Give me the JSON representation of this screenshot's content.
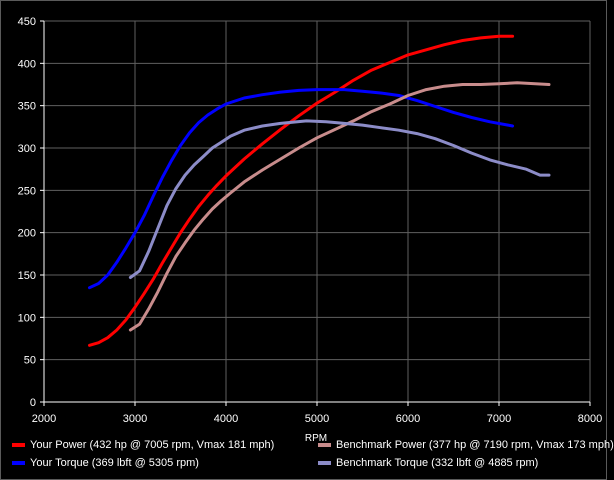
{
  "chart_data": {
    "type": "line",
    "title": "",
    "xlabel": "RPM",
    "ylabel": "",
    "xlim": [
      2000,
      8000
    ],
    "ylim": [
      0,
      450
    ],
    "xticks": [
      2000,
      3000,
      4000,
      5000,
      6000,
      7000,
      8000
    ],
    "yticks": [
      0,
      50,
      100,
      150,
      200,
      250,
      300,
      350,
      400,
      450
    ],
    "grid": true,
    "legend_position": "bottom",
    "series": [
      {
        "name": "Your Power (432 hp @ 7005 rpm, Vmax 181 mph)",
        "color": "#ff0000",
        "x": [
          2500,
          2600,
          2700,
          2800,
          2900,
          3000,
          3100,
          3200,
          3300,
          3400,
          3500,
          3600,
          3700,
          3800,
          3900,
          4000,
          4200,
          4400,
          4600,
          4800,
          5000,
          5200,
          5400,
          5600,
          5800,
          6000,
          6200,
          6400,
          6600,
          6800,
          7000,
          7150
        ],
        "y": [
          67,
          70,
          76,
          85,
          97,
          112,
          128,
          145,
          164,
          182,
          200,
          216,
          231,
          244,
          256,
          267,
          287,
          305,
          322,
          338,
          353,
          366,
          380,
          392,
          401,
          410,
          416,
          422,
          427,
          430,
          432,
          432
        ]
      },
      {
        "name": "Your Torque (369 lbft @ 5305 rpm)",
        "color": "#0000ff",
        "x": [
          2500,
          2600,
          2700,
          2800,
          2900,
          3000,
          3100,
          3200,
          3300,
          3400,
          3500,
          3600,
          3700,
          3800,
          3900,
          4000,
          4200,
          4400,
          4600,
          4800,
          5000,
          5300,
          5500,
          5700,
          5900,
          6100,
          6300,
          6500,
          6700,
          6900,
          7100,
          7150
        ],
        "y": [
          135,
          140,
          150,
          165,
          182,
          200,
          220,
          243,
          265,
          285,
          303,
          318,
          330,
          339,
          346,
          352,
          359,
          363,
          366,
          368,
          369,
          369,
          367,
          365,
          362,
          356,
          349,
          342,
          336,
          331,
          327,
          326
        ]
      },
      {
        "name": "Benchmark Power (377 hp @ 7190 rpm, Vmax 173 mph)",
        "color": "#c88c8c",
        "x": [
          2950,
          3050,
          3150,
          3250,
          3350,
          3450,
          3550,
          3650,
          3750,
          3850,
          3950,
          4050,
          4200,
          4400,
          4600,
          4800,
          5000,
          5200,
          5400,
          5600,
          5800,
          6000,
          6200,
          6400,
          6600,
          6800,
          7000,
          7200,
          7400,
          7550
        ],
        "y": [
          85,
          92,
          110,
          130,
          152,
          172,
          188,
          203,
          216,
          228,
          238,
          247,
          260,
          274,
          287,
          300,
          312,
          322,
          332,
          343,
          352,
          362,
          369,
          373,
          375,
          375,
          376,
          377,
          376,
          375
        ]
      },
      {
        "name": "Benchmark Torque (332 lbft @ 4885 rpm)",
        "color": "#8c8cc8",
        "x": [
          2950,
          3050,
          3150,
          3250,
          3350,
          3450,
          3550,
          3650,
          3750,
          3850,
          3950,
          4050,
          4200,
          4400,
          4600,
          4885,
          5100,
          5300,
          5500,
          5700,
          5900,
          6100,
          6300,
          6500,
          6700,
          6900,
          7100,
          7300,
          7450,
          7550
        ],
        "y": [
          147,
          155,
          178,
          205,
          232,
          252,
          268,
          280,
          290,
          300,
          307,
          314,
          321,
          326,
          329,
          332,
          331,
          329,
          327,
          324,
          321,
          317,
          311,
          303,
          294,
          286,
          280,
          275,
          268,
          268
        ]
      }
    ]
  }
}
